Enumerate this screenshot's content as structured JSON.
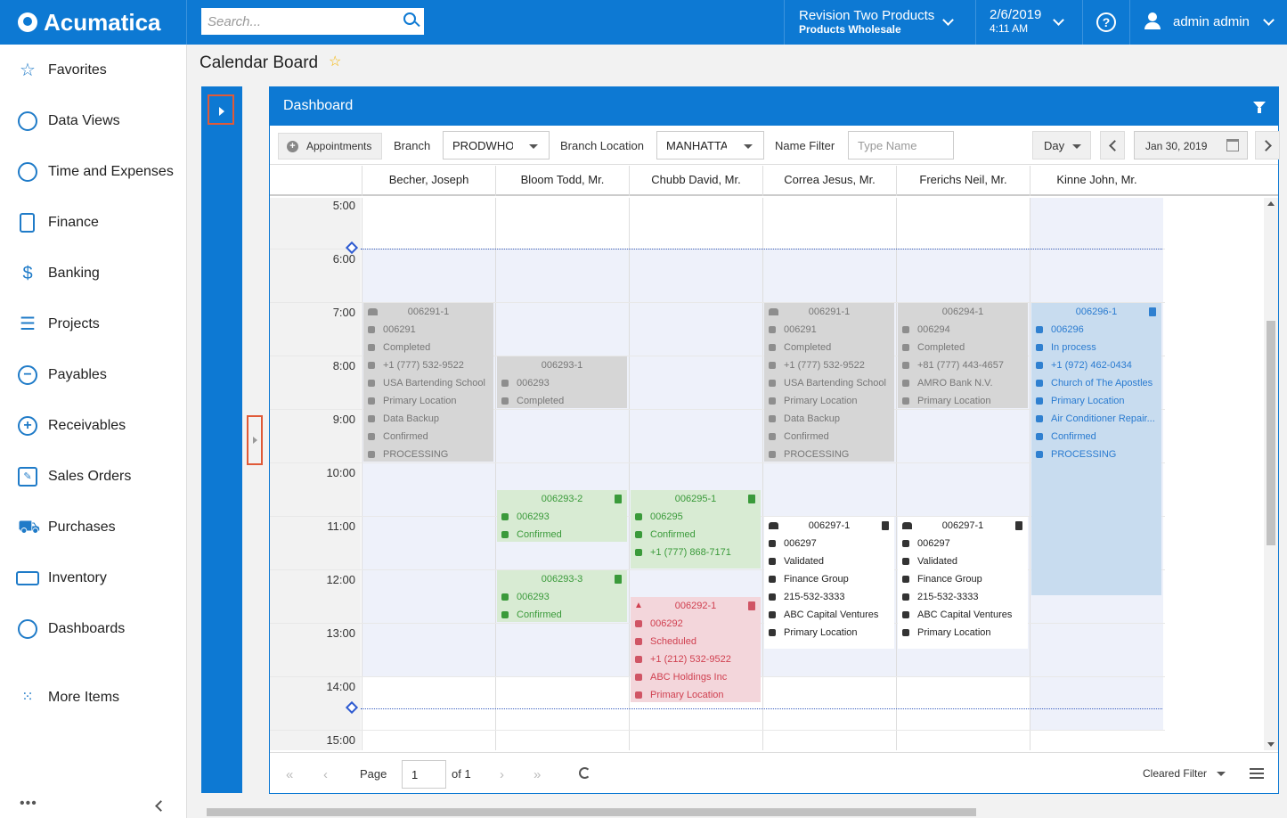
{
  "topbar": {
    "brand": "Acumatica",
    "search_placeholder": "Search...",
    "company_line1": "Revision Two Products",
    "company_line2": "Products Wholesale",
    "date": "2/6/2019",
    "time": "4:11 AM",
    "help_glyph": "?",
    "user": "admin admin",
    "brand_color": "#0d79d3"
  },
  "nav": {
    "items": [
      {
        "label": "Favorites",
        "icon": "star-icon"
      },
      {
        "label": "Data Views",
        "icon": "pie-chart-icon"
      },
      {
        "label": "Time and Expenses",
        "icon": "stopwatch-icon"
      },
      {
        "label": "Finance",
        "icon": "calculator-icon"
      },
      {
        "label": "Banking",
        "icon": "dollar-icon"
      },
      {
        "label": "Projects",
        "icon": "gantt-icon"
      },
      {
        "label": "Payables",
        "icon": "minus-circle-icon"
      },
      {
        "label": "Receivables",
        "icon": "plus-circle-icon"
      },
      {
        "label": "Sales Orders",
        "icon": "pencil-icon"
      },
      {
        "label": "Purchases",
        "icon": "cart-icon"
      },
      {
        "label": "Inventory",
        "icon": "truck-icon"
      },
      {
        "label": "Dashboards",
        "icon": "gauge-icon"
      },
      {
        "label": "More Items",
        "icon": "grid-dots-icon"
      }
    ]
  },
  "page": {
    "title": "Calendar Board"
  },
  "dashboard": {
    "title": "Dashboard",
    "toolbar": {
      "appointments_label": "Appointments",
      "branch_label": "Branch",
      "branch_value": "PRODWHOLE",
      "branch_location_label": "Branch Location",
      "branch_location_value": "MANHATTAN",
      "name_filter_label": "Name Filter",
      "name_filter_placeholder": "Type Name",
      "view_mode": "Day",
      "date": "Jan 30, 2019"
    },
    "columns": [
      "Becher, Joseph",
      "Bloom Todd, Mr.",
      "Chubb David, Mr.",
      "Correa Jesus, Mr.",
      "Frerichs Neil, Mr.",
      "Kinne John, Mr."
    ],
    "hours": [
      "5:00",
      "6:00",
      "7:00",
      "8:00",
      "9:00",
      "10:00",
      "11:00",
      "12:00",
      "13:00",
      "14:00",
      "15:00"
    ],
    "appointments": [
      {
        "col": 0,
        "start": 7,
        "end": 10,
        "style": "gray",
        "title": "006291-1",
        "group_icon": true,
        "trash": false,
        "rows": [
          "006291",
          "Completed",
          "+1 (777) 532-9522",
          "USA Bartending School",
          "Primary Location",
          "Data Backup",
          "Confirmed",
          "PROCESSING"
        ]
      },
      {
        "col": 1,
        "start": 8,
        "end": 9,
        "style": "gray",
        "title": "006293-1",
        "group_icon": false,
        "trash": false,
        "rows": [
          "006293",
          "Completed"
        ]
      },
      {
        "col": 1,
        "start": 10.5,
        "end": 11.5,
        "style": "green",
        "title": "006293-2",
        "group_icon": false,
        "trash": true,
        "rows": [
          "006293",
          "Confirmed"
        ]
      },
      {
        "col": 1,
        "start": 12,
        "end": 13,
        "style": "green",
        "title": "006293-3",
        "group_icon": false,
        "trash": true,
        "rows": [
          "006293",
          "Confirmed"
        ]
      },
      {
        "col": 2,
        "start": 10.5,
        "end": 12,
        "style": "green",
        "title": "006295-1",
        "group_icon": false,
        "trash": true,
        "rows": [
          "006295",
          "Confirmed",
          "+1 (777) 868-7171"
        ]
      },
      {
        "col": 2,
        "start": 12.5,
        "end": 14.5,
        "style": "red",
        "title": "006292-1",
        "group_icon": false,
        "trash": true,
        "warn": true,
        "rows": [
          "006292",
          "Scheduled",
          "+1 (212) 532-9522",
          "ABC Holdings Inc",
          "Primary Location"
        ]
      },
      {
        "col": 3,
        "start": 7,
        "end": 10,
        "style": "gray",
        "title": "006291-1",
        "group_icon": true,
        "trash": false,
        "rows": [
          "006291",
          "Completed",
          "+1 (777) 532-9522",
          "USA Bartending School",
          "Primary Location",
          "Data Backup",
          "Confirmed",
          "PROCESSING"
        ]
      },
      {
        "col": 3,
        "start": 11,
        "end": 13.5,
        "style": "white",
        "title": "006297-1",
        "group_icon": true,
        "trash": true,
        "rows": [
          "006297",
          "Validated",
          "Finance Group",
          "215-532-3333",
          "ABC Capital Ventures",
          "Primary Location"
        ]
      },
      {
        "col": 4,
        "start": 7,
        "end": 9,
        "style": "gray",
        "title": "006294-1",
        "group_icon": false,
        "trash": false,
        "rows": [
          "006294",
          "Completed",
          "+81 (777) 443-4657",
          "AMRO Bank N.V.",
          "Primary Location"
        ]
      },
      {
        "col": 4,
        "start": 11,
        "end": 13.5,
        "style": "white",
        "title": "006297-1",
        "group_icon": true,
        "trash": true,
        "rows": [
          "006297",
          "Validated",
          "Finance Group",
          "215-532-3333",
          "ABC Capital Ventures",
          "Primary Location"
        ]
      },
      {
        "col": 5,
        "start": 7,
        "end": 12.5,
        "style": "blue",
        "title": "006296-1",
        "group_icon": false,
        "trash": true,
        "rows": [
          "006296",
          "In process",
          "+1 (972) 462-0434",
          "Church of The Apostles",
          "Primary Location",
          "Air Conditioner Repair...",
          "Confirmed",
          "PROCESSING"
        ]
      }
    ],
    "footer": {
      "page_label": "Page",
      "page_value": "1",
      "of_label": "of 1",
      "cleared_filter": "Cleared Filter"
    }
  }
}
